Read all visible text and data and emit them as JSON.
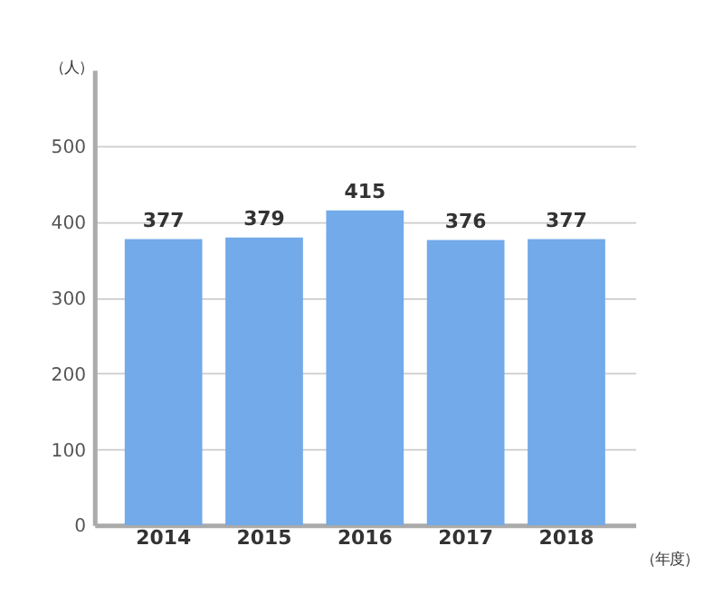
{
  "chart_data": {
    "type": "bar",
    "xlabel": "（年度）",
    "ylabel": "（人）",
    "categories": [
      "2014",
      "2015",
      "2016",
      "2017",
      "2018"
    ],
    "values": [
      377,
      379,
      415,
      376,
      377
    ],
    "color": "#72aaea",
    "ylim": [
      0,
      600
    ],
    "yticks": [
      0,
      100,
      200,
      300,
      400,
      500
    ],
    "grid": "y",
    "data_labels": true
  }
}
